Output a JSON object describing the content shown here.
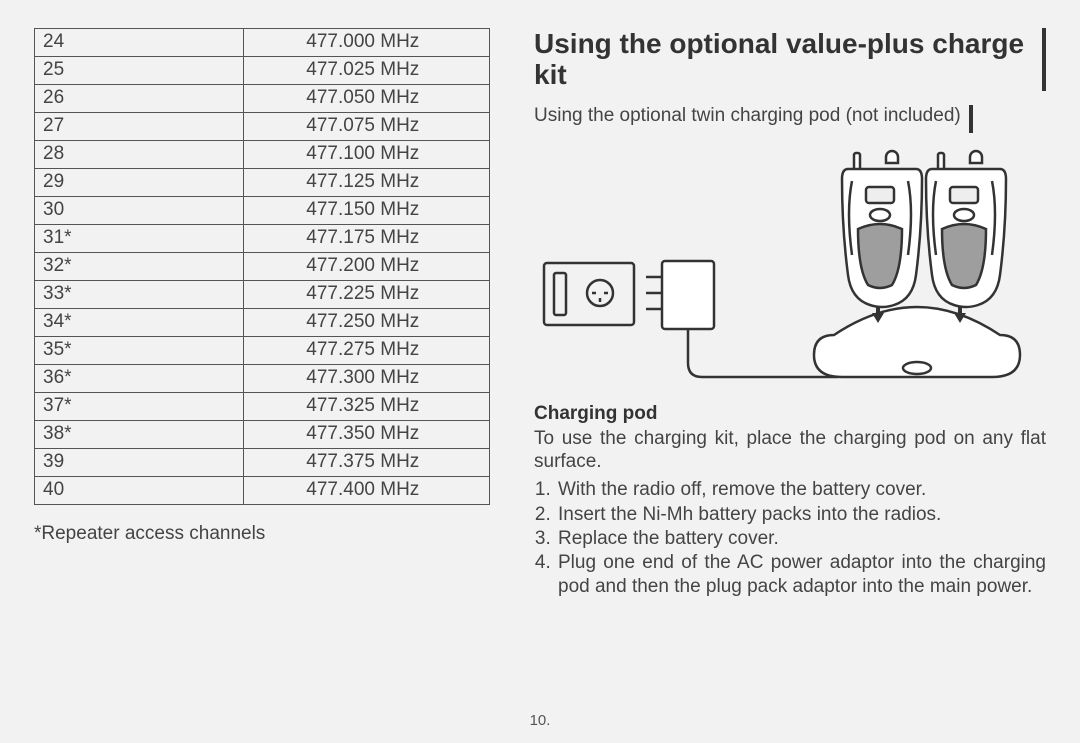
{
  "frequency_table": {
    "rows": [
      {
        "channel": "24",
        "freq": "477.000 MHz"
      },
      {
        "channel": "25",
        "freq": "477.025 MHz"
      },
      {
        "channel": "26",
        "freq": "477.050 MHz"
      },
      {
        "channel": "27",
        "freq": "477.075 MHz"
      },
      {
        "channel": "28",
        "freq": "477.100 MHz"
      },
      {
        "channel": "29",
        "freq": "477.125 MHz"
      },
      {
        "channel": "30",
        "freq": "477.150 MHz"
      },
      {
        "channel": "31*",
        "freq": "477.175 MHz"
      },
      {
        "channel": "32*",
        "freq": "477.200 MHz"
      },
      {
        "channel": "33*",
        "freq": "477.225 MHz"
      },
      {
        "channel": "34*",
        "freq": "477.250 MHz"
      },
      {
        "channel": "35*",
        "freq": "477.275 MHz"
      },
      {
        "channel": "36*",
        "freq": "477.300 MHz"
      },
      {
        "channel": "37*",
        "freq": "477.325 MHz"
      },
      {
        "channel": "38*",
        "freq": "477.350 MHz"
      },
      {
        "channel": "39",
        "freq": "477.375 MHz"
      },
      {
        "channel": "40",
        "freq": "477.400 MHz"
      }
    ],
    "border_color": "#555555",
    "font_size_pt": 15,
    "cell_text_color": "#444444"
  },
  "footnote": "*Repeater access channels",
  "right": {
    "heading": "Using the optional value-plus charge kit",
    "subline": "Using the optional twin charging pod (not included)",
    "diagram": {
      "type": "infographic",
      "stroke_color": "#333333",
      "fill_body": "#ffffff",
      "fill_grip": "#9e9e9e",
      "background": "#f2f2f2"
    },
    "charging_heading": "Charging pod",
    "intro_para": "To use the charging kit, place the charging pod on any flat surface.",
    "steps": [
      "With the radio off, remove the battery cover.",
      "Insert the Ni-Mh battery packs into the radios.",
      "Replace the battery cover.",
      "Plug one end of the AC power adaptor into the charging pod and then the plug pack adaptor into the main power."
    ]
  },
  "page_number": "10.",
  "page_bg": "#f2f2f2"
}
